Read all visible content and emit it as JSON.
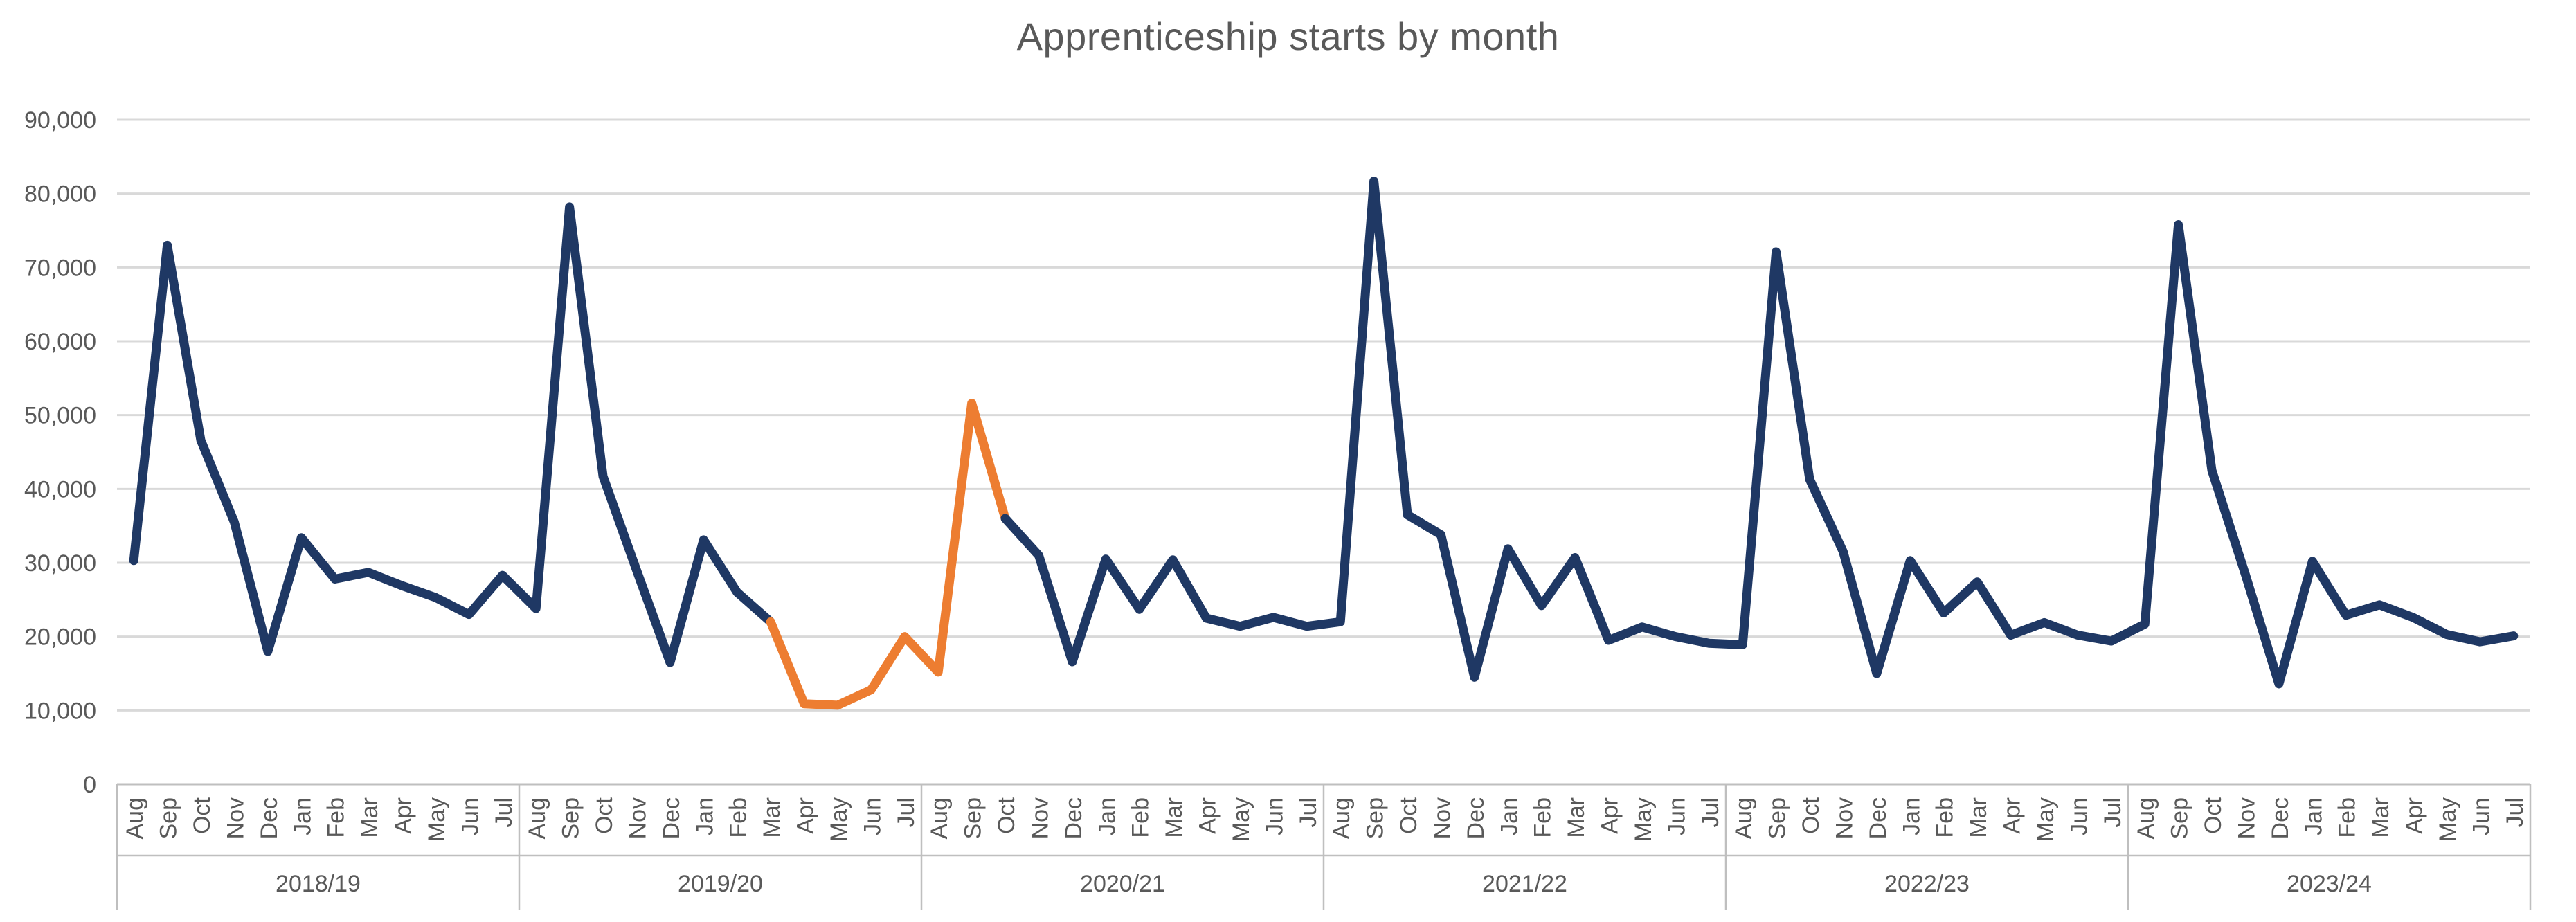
{
  "chart_data": {
    "type": "line",
    "title": "Apprenticeship starts by month",
    "xlabel": "",
    "ylabel": "",
    "ylim": [
      0,
      90000
    ],
    "grid": "horizontal",
    "legend": "none",
    "yticks": [
      {
        "value": 0,
        "label": "0"
      },
      {
        "value": 10000,
        "label": "10,000"
      },
      {
        "value": 20000,
        "label": "20,000"
      },
      {
        "value": 30000,
        "label": "30,000"
      },
      {
        "value": 40000,
        "label": "40,000"
      },
      {
        "value": 50000,
        "label": "50,000"
      },
      {
        "value": 60000,
        "label": "60,000"
      },
      {
        "value": 70000,
        "label": "70,000"
      },
      {
        "value": 80000,
        "label": "80,000"
      },
      {
        "value": 90000,
        "label": "90,000"
      }
    ],
    "month_labels": [
      "Aug",
      "Sep",
      "Oct",
      "Nov",
      "Dec",
      "Jan",
      "Feb",
      "Mar",
      "Apr",
      "May",
      "Jun",
      "Jul"
    ],
    "year_groups": [
      "2018/19",
      "2019/20",
      "2020/21",
      "2021/22",
      "2022/23",
      "2023/24"
    ],
    "series": [
      {
        "name": "Apprenticeship starts",
        "values": [
          30300,
          73000,
          46600,
          35500,
          18000,
          33400,
          27800,
          28700,
          26900,
          25300,
          23000,
          28300,
          23800,
          78200,
          41700,
          29000,
          16500,
          33100,
          26000,
          22000,
          10900,
          10700,
          12800,
          20000,
          15200,
          51600,
          36000,
          31000,
          16600,
          30500,
          23700,
          30400,
          22500,
          21400,
          22600,
          21400,
          22000,
          81700,
          36500,
          33800,
          14500,
          31900,
          24200,
          30700,
          19500,
          21300,
          20000,
          19100,
          18900,
          72100,
          41300,
          31500,
          15000,
          30300,
          23200,
          27400,
          20200,
          21900,
          20200,
          19400,
          21700,
          75800,
          42500,
          28400,
          13600,
          30200,
          22900,
          24300,
          22600,
          20300,
          19300,
          20100
        ]
      }
    ],
    "highlight_segment": {
      "from_index": 19,
      "to_index": 26,
      "color": "#ed7d31"
    },
    "colors": {
      "line": "#1f3864",
      "highlight": "#ed7d31",
      "gridline": "#d9d9d9",
      "axis": "#bfbfbf",
      "text": "#595959"
    }
  }
}
